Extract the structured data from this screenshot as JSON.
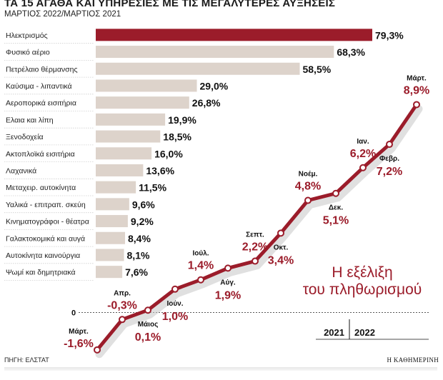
{
  "header": {
    "title": "ΤΑ 15 ΑΓΑΘΑ ΚΑΙ ΥΠΗΡΕΣΙΕΣ ΜΕ ΤΙΣ ΜΕΓΑΛΥΤΕΡΕΣ ΑΥΞΗΣΕΙΣ",
    "subtitle": "ΜΑΡΤΙΟΣ 2022/ΜΑΡΤΙΟΣ 2021"
  },
  "footer": {
    "source": "ΠΗΓΗ: ΕΛΣΤΑΤ",
    "publisher": "Η ΚΑΘΗΜΕΡΙΝΗ"
  },
  "colors": {
    "accent": "#9b1c2a",
    "bar": "#ddd3cb",
    "highlight_bar": "#9b1c2a",
    "shadow": "#c7c7c7"
  },
  "chart_data": [
    {
      "type": "bar",
      "orientation": "horizontal",
      "title": "ΤΑ 15 ΑΓΑΘΑ ΚΑΙ ΥΠΗΡΕΣΙΕΣ ΜΕ ΤΙΣ ΜΕΓΑΛΥΤΕΡΕΣ ΑΥΞΗΣΕΙΣ",
      "subtitle": "ΜΑΡΤΙΟΣ 2022/ΜΑΡΤΙΟΣ 2021",
      "categories": [
        "Ηλεκτρισμός",
        "Φυσικό αέριο",
        "Πετρέλαιο θέρμανσης",
        "Καύσιμα - λιπαντικά",
        "Αεροπορικά εισιτήρια",
        "Ελαια και λίπη",
        "Ξενοδοχεία",
        "Ακτοπλοϊκά εισιτήρια",
        "Λαχανικά",
        "Μεταχειρ. αυτοκίνητα",
        "Υαλικά - επιτραπ. σκεύη",
        "Κινηματογράφοι - θέατρα",
        "Γαλακτοκομικά και αυγά",
        "Αυτοκίνητα καινούργια",
        "Ψωμί και δημητριακά"
      ],
      "values": [
        79.3,
        68.3,
        58.5,
        29.0,
        26.8,
        19.9,
        18.5,
        16.0,
        13.6,
        11.5,
        9.6,
        9.2,
        8.4,
        8.1,
        7.6
      ],
      "labels": [
        "79,3%",
        "68,3%",
        "58,5%",
        "29,0%",
        "26,8%",
        "19,9%",
        "18,5%",
        "16,0%",
        "13,6%",
        "11,5%",
        "9,6%",
        "9,2%",
        "8,4%",
        "8,1%",
        "7,6%"
      ],
      "xlim": [
        0,
        79.3
      ]
    },
    {
      "type": "line",
      "title": "Η εξέλιξη του πληθωρισμού",
      "title_lines": [
        "Η εξέλιξη",
        "του πληθωρισμού"
      ],
      "zero_label": "0",
      "year_labels": [
        "2021",
        "2022"
      ],
      "x": [
        "Μάρτ.",
        "Απρ.",
        "Μάιος",
        "Ιούν.",
        "Ιούλ.",
        "Αύγ.",
        "Σεπτ.",
        "Οκτ.",
        "Νοέμ.",
        "Δεκ.",
        "Ιαν.",
        "Φεβρ.",
        "Μάρτ."
      ],
      "values": [
        -1.6,
        -0.3,
        0.1,
        1.0,
        1.4,
        1.9,
        2.2,
        3.4,
        4.8,
        5.1,
        6.2,
        7.2,
        8.9
      ],
      "labels": [
        "-1,6%",
        "-0,3%",
        "0,1%",
        "1,0%",
        "1,4%",
        "1,9%",
        "2,2%",
        "3,4%",
        "4,8%",
        "5,1%",
        "6,2%",
        "7,2%",
        "8,9%"
      ]
    }
  ]
}
